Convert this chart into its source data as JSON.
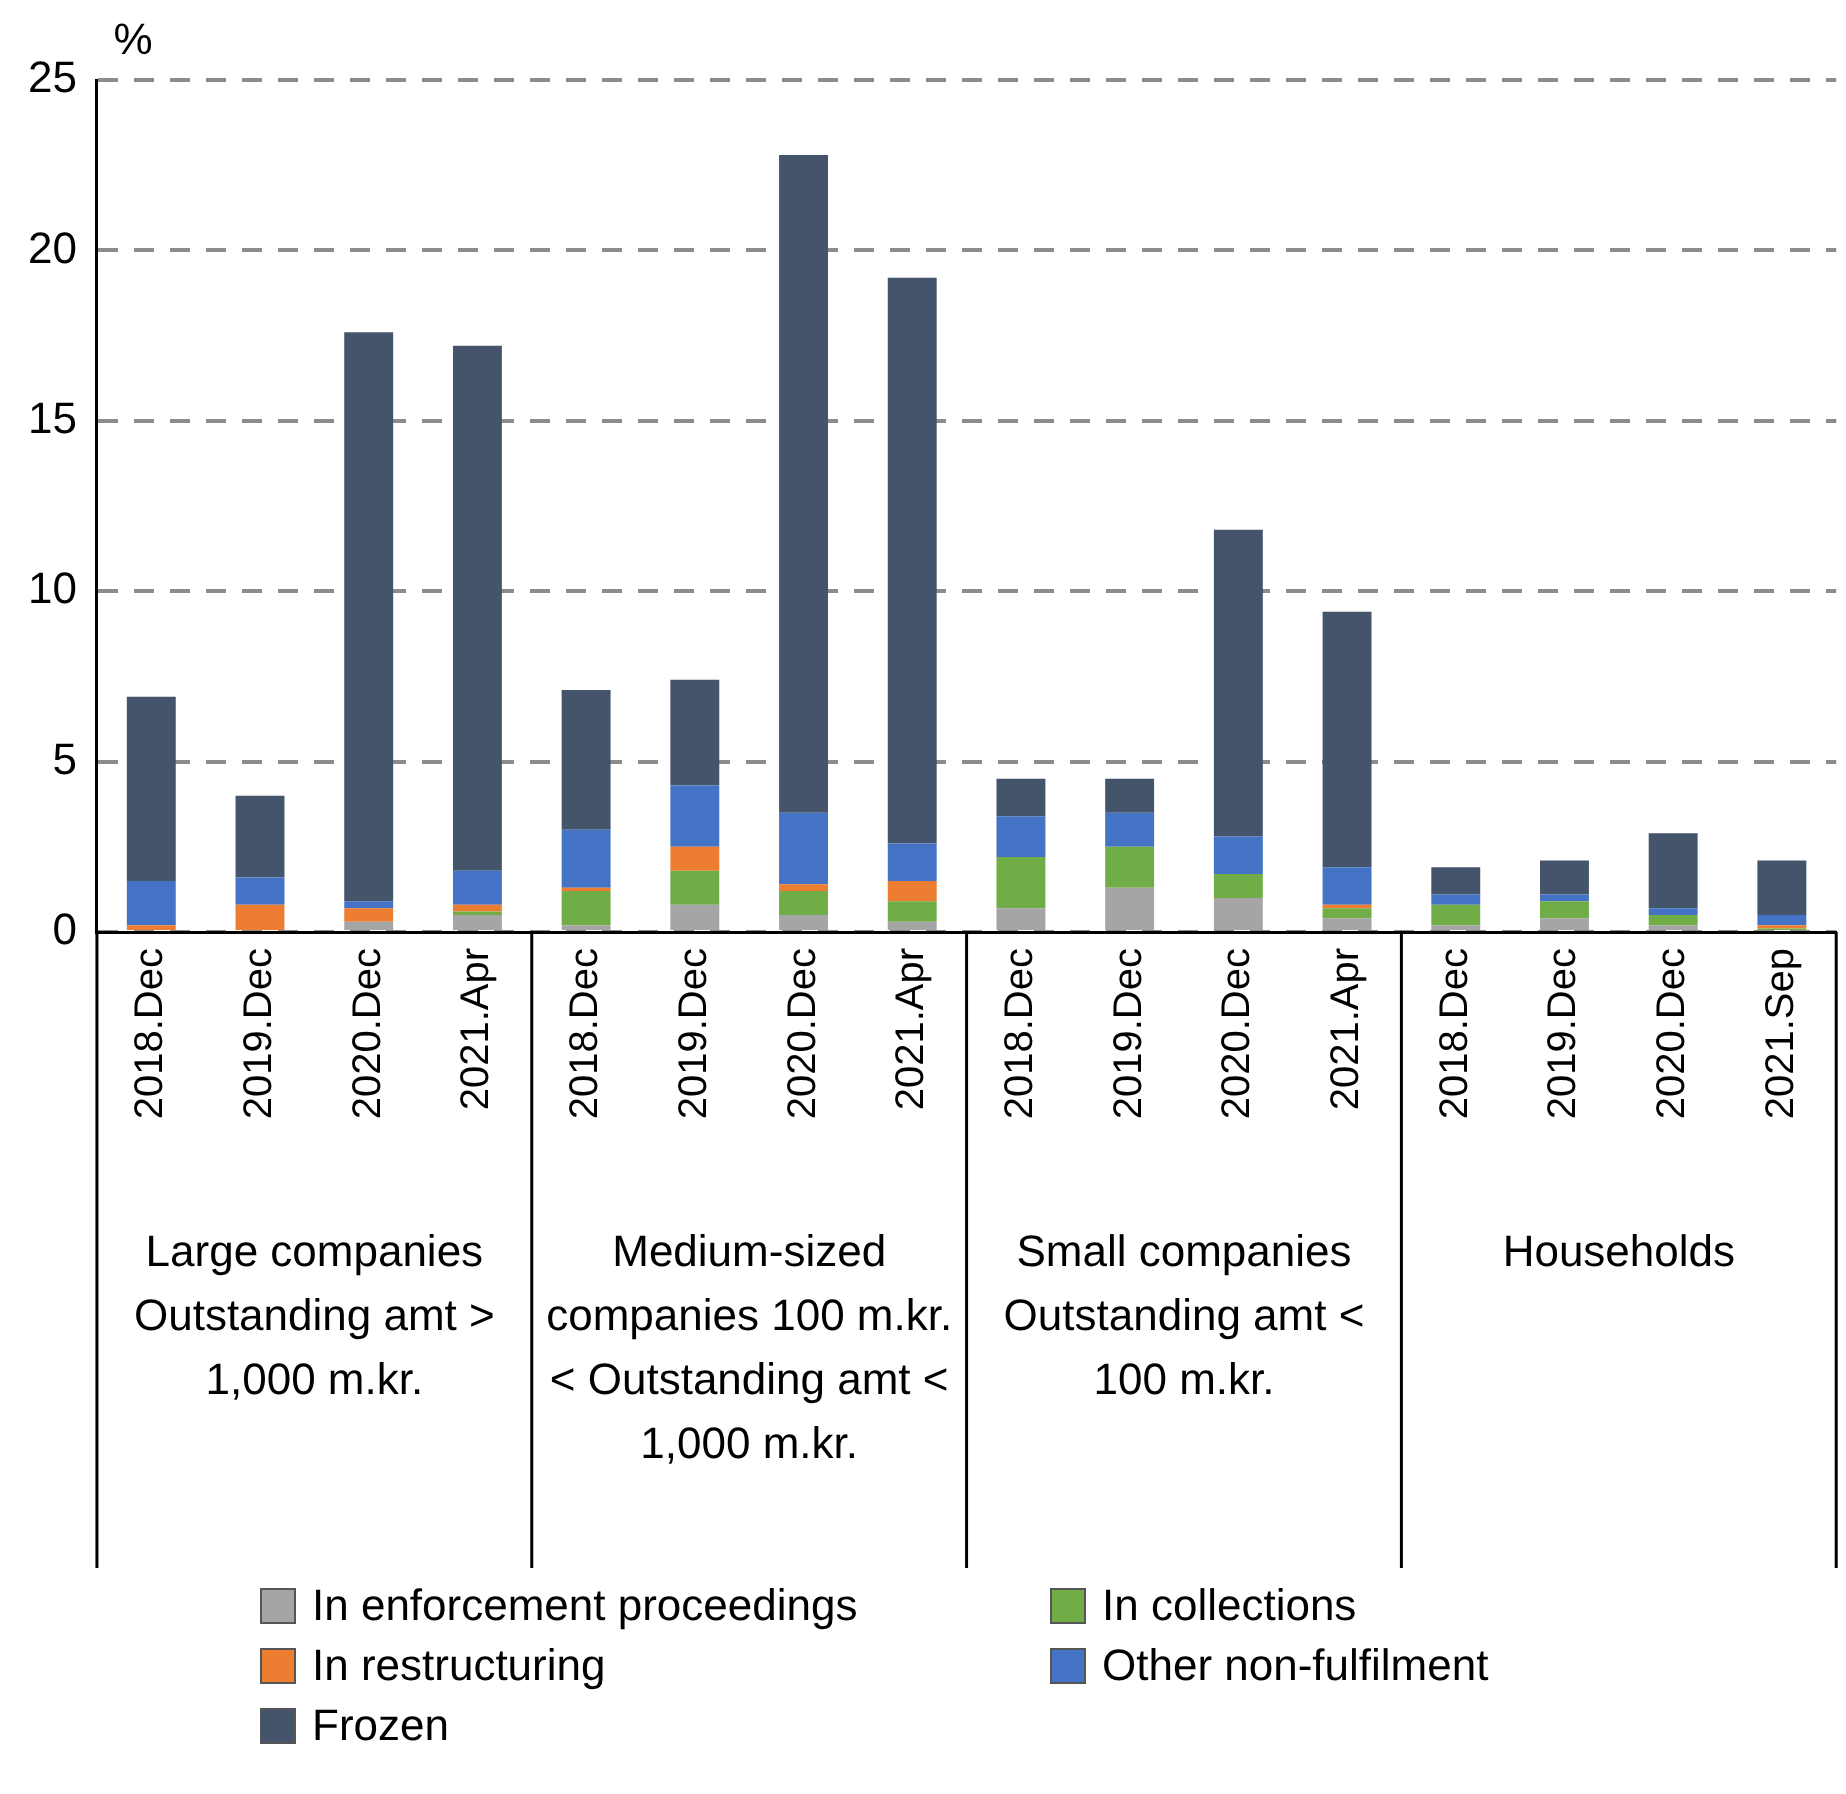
{
  "chart_data": {
    "type": "bar",
    "stacked": true,
    "ylabel": "%",
    "categories": [
      "2018.Dec",
      "2019.Dec",
      "2020.Dec",
      "2021.Apr",
      "2018.Dec",
      "2019.Dec",
      "2020.Dec",
      "2021.Apr",
      "2018.Dec",
      "2019.Dec",
      "2020.Dec",
      "2021.Apr",
      "2018.Dec",
      "2019.Dec",
      "2020.Dec",
      "2021.Sep"
    ],
    "series": [
      {
        "name": "In enforcement proceedings",
        "color": "#a5a5a5",
        "values": [
          0,
          0,
          0.3,
          0.5,
          0.2,
          0.8,
          0.5,
          0.3,
          0.7,
          1.3,
          1.0,
          0.4,
          0.2,
          0.4,
          0.2,
          null
        ]
      },
      {
        "name": "In collections",
        "color": "#70ad47",
        "values": [
          0,
          0,
          0,
          0.1,
          1.0,
          1.0,
          0.7,
          0.6,
          1.5,
          1.2,
          0.7,
          0.3,
          0.6,
          0.5,
          0.3,
          0.1
        ]
      },
      {
        "name": "In restructuring",
        "color": "#ed7d31",
        "values": [
          0.2,
          0.8,
          0.4,
          0.2,
          0.1,
          0.7,
          0.2,
          0.6,
          0,
          0,
          0,
          0.1,
          0,
          0,
          0,
          0.1
        ]
      },
      {
        "name": "Other non-fulfilment",
        "color": "#4472c4",
        "values": [
          1.3,
          0.8,
          0.2,
          1.0,
          1.7,
          1.8,
          2.1,
          1.1,
          1.2,
          1.0,
          1.1,
          1.1,
          0.3,
          0.2,
          0.2,
          0.3
        ]
      },
      {
        "name": "Frozen",
        "color": "#44546a",
        "values": [
          5.4,
          2.4,
          16.7,
          15.4,
          4.1,
          3.1,
          19.3,
          16.6,
          1.1,
          1.0,
          9.0,
          7.5,
          0.8,
          1.0,
          2.2,
          1.6
        ]
      }
    ],
    "annotations": [
      "Large companies Outstanding amt > 1,000 m.kr.",
      "Medium-sized companies 100 m.kr. < Outstanding amt < 1,000 m.kr.",
      "Small companies Outstanding amt < 100 m.kr.",
      "Households"
    ],
    "ylim": [
      0,
      25
    ],
    "yticks": [
      0,
      5,
      10,
      15,
      20,
      25
    ],
    "grid": "y",
    "legend": "bottom"
  }
}
